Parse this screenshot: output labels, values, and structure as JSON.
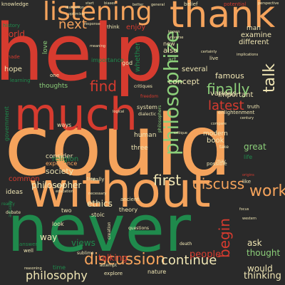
{
  "palette": {
    "background": "#2a2a2a",
    "red": "#d63b2f",
    "orange": "#f5a35c",
    "green": "#1f8a4c",
    "light_green": "#8ccf7a",
    "cream": "#f0e6b4"
  },
  "words": [
    {
      "text": "help",
      "color": "#d63b2f"
    },
    {
      "text": "could",
      "color": "#f5a35c"
    },
    {
      "text": "never",
      "color": "#1f8a4c"
    },
    {
      "text": "without",
      "color": "#f5a35c"
    },
    {
      "text": "thank",
      "color": "#f5a35c"
    },
    {
      "text": "much",
      "color": "#d63b2f"
    },
    {
      "text": "listening",
      "color": "#f5a35c"
    },
    {
      "text": "philosophize",
      "color": "#8ccf7a"
    },
    {
      "text": "discussion",
      "color": "#f5a35c"
    },
    {
      "text": "first",
      "color": "#f0e6b4"
    },
    {
      "text": "discuss",
      "color": "#f5a35c"
    },
    {
      "text": "work",
      "color": "#f5a35c"
    },
    {
      "text": "talk",
      "color": "#f0e6b4"
    },
    {
      "text": "finally",
      "color": "#8ccf7a"
    },
    {
      "text": "next",
      "color": "#f5a35c"
    },
    {
      "text": "find",
      "color": "#d63b2f"
    },
    {
      "text": "latest",
      "color": "#d63b2f"
    },
    {
      "text": "begin",
      "color": "#d63b2f"
    },
    {
      "text": "continue",
      "color": "#f0e6b4"
    },
    {
      "text": "philosophy",
      "color": "#f0e6b4"
    },
    {
      "text": "philosopher",
      "color": "#f0e6b4"
    },
    {
      "text": "thought",
      "color": "#8ccf7a"
    },
    {
      "text": "people",
      "color": "#d63b2f"
    },
    {
      "text": "thinking",
      "color": "#f0e6b4"
    },
    {
      "text": "world",
      "color": "#d63b2f"
    },
    {
      "text": "concept",
      "color": "#f0e6b4"
    },
    {
      "text": "talking",
      "color": "#d63b2f"
    },
    {
      "text": "views",
      "color": "#1f8a4c"
    },
    {
      "text": "ethics",
      "color": "#f0e6b4"
    },
    {
      "text": "ask",
      "color": "#f0e6b4"
    },
    {
      "text": "would",
      "color": "#f0e6b4"
    },
    {
      "text": "way",
      "color": "#f0e6b4"
    },
    {
      "text": "society",
      "color": "#f0e6b4"
    },
    {
      "text": "human",
      "color": "#f0e6b4"
    },
    {
      "text": "modern",
      "color": "#f0e6b4"
    },
    {
      "text": "great",
      "color": "#8ccf7a"
    },
    {
      "text": "book",
      "color": "#f0e6b4"
    },
    {
      "text": "famous",
      "color": "#f0e6b4"
    },
    {
      "text": "important",
      "color": "#f0e6b4"
    },
    {
      "text": "various",
      "color": "#f0e6b4"
    },
    {
      "text": "hope",
      "color": "#f0e6b4"
    },
    {
      "text": "ideas",
      "color": "#f0e6b4"
    },
    {
      "text": "thoughts",
      "color": "#8ccf7a"
    },
    {
      "text": "consider",
      "color": "#f0e6b4"
    },
    {
      "text": "experience",
      "color": "#f5a35c"
    },
    {
      "text": "religion",
      "color": "#1f8a4c"
    },
    {
      "text": "common",
      "color": "#d63b2f"
    },
    {
      "text": "several",
      "color": "#f0e6b4"
    },
    {
      "text": "also",
      "color": "#f0e6b4"
    },
    {
      "text": "examine",
      "color": "#f0e6b4"
    },
    {
      "text": "different",
      "color": "#f0e6b4"
    },
    {
      "text": "love",
      "color": "#8ccf7a"
    },
    {
      "text": "importance",
      "color": "#1f8a4c"
    },
    {
      "text": "god",
      "color": "#f0e6b4"
    },
    {
      "text": "enjoy",
      "color": "#d63b2f"
    },
    {
      "text": "think",
      "color": "#f0e6b4"
    },
    {
      "text": "man",
      "color": "#f0e6b4"
    },
    {
      "text": "art",
      "color": "#8ccf7a"
    },
    {
      "text": "whether",
      "color": "#1f8a4c"
    },
    {
      "text": "system",
      "color": "#f0e6b4"
    },
    {
      "text": "three",
      "color": "#f0e6b4"
    },
    {
      "text": "ways",
      "color": "#f0e6b4"
    },
    {
      "text": "learning",
      "color": "#1f8a4c"
    },
    {
      "text": "government",
      "color": "#1f8a4c"
    },
    {
      "text": "stoic",
      "color": "#f0e6b4"
    },
    {
      "text": "theory",
      "color": "#f0e6b4"
    },
    {
      "text": "two",
      "color": "#f0e6b4"
    },
    {
      "text": "look",
      "color": "#f0e6b4"
    },
    {
      "text": "ancient",
      "color": "#f0e6b4"
    },
    {
      "text": "really",
      "color": "#f0e6b4"
    },
    {
      "text": "nature",
      "color": "#f0e6b4"
    },
    {
      "text": "explore",
      "color": "#f0e6b4"
    },
    {
      "text": "time",
      "color": "#1f8a4c"
    },
    {
      "text": "answer",
      "color": "#1f8a4c"
    },
    {
      "text": "well",
      "color": "#f0e6b4"
    },
    {
      "text": "life",
      "color": "#1f8a4c"
    },
    {
      "text": "possible",
      "color": "#f0e6b4"
    },
    {
      "text": "like",
      "color": "#f0e6b4"
    },
    {
      "text": "truth",
      "color": "#f0e6b4"
    },
    {
      "text": "enlightenment",
      "color": "#f0e6b4"
    },
    {
      "text": "knowledge",
      "color": "#f0e6b4"
    },
    {
      "text": "belief",
      "color": "#f0e6b4"
    },
    {
      "text": "potential",
      "color": "#d63b2f"
    },
    {
      "text": "made",
      "color": "#d63b2f"
    },
    {
      "text": "history",
      "color": "#1f8a4c"
    },
    {
      "text": "critiques",
      "color": "#f0e6b4"
    },
    {
      "text": "freedom",
      "color": "#d63b2f"
    },
    {
      "text": "dialectic",
      "color": "#f0e6b4"
    },
    {
      "text": "reality",
      "color": "#1f8a4c"
    },
    {
      "text": "debate",
      "color": "#f0e6b4"
    },
    {
      "text": "questions",
      "color": "#f0e6b4"
    },
    {
      "text": "sublime",
      "color": "#f0e6b4"
    },
    {
      "text": "attempt",
      "color": "#f0e6b4"
    },
    {
      "text": "creation",
      "color": "#f0e6b4"
    },
    {
      "text": "death",
      "color": "#f0e6b4"
    },
    {
      "text": "necessary",
      "color": "#f0e6b4"
    },
    {
      "text": "focus",
      "color": "#f0e6b4"
    },
    {
      "text": "western",
      "color": "#f0e6b4"
    },
    {
      "text": "origins",
      "color": "#d63b2f"
    },
    {
      "text": "century",
      "color": "#f0e6b4"
    },
    {
      "text": "compare",
      "color": "#f0e6b4"
    },
    {
      "text": "known",
      "color": "#f0e6b4"
    },
    {
      "text": "universe",
      "color": "#f0e6b4"
    },
    {
      "text": "certainty",
      "color": "#f0e6b4"
    },
    {
      "text": "implications",
      "color": "#f0e6b4"
    },
    {
      "text": "critique",
      "color": "#f0e6b4"
    },
    {
      "text": "logical",
      "color": "#f0e6b4"
    },
    {
      "text": "distinction",
      "color": "#f0e6b4"
    },
    {
      "text": "optimism",
      "color": "#f0e6b4"
    },
    {
      "text": "response",
      "color": "#f0e6b4"
    },
    {
      "text": "perspective",
      "color": "#f0e6b4"
    },
    {
      "text": "better",
      "color": "#f0e6b4"
    },
    {
      "text": "general",
      "color": "#f0e6b4"
    },
    {
      "text": "philosophers",
      "color": "#8ccf7a"
    },
    {
      "text": "take",
      "color": "#f0e6b4"
    },
    {
      "text": "may",
      "color": "#f0e6b4"
    },
    {
      "text": "good",
      "color": "#f0e6b4"
    },
    {
      "text": "education",
      "color": "#f0e6b4"
    },
    {
      "text": "reasoning",
      "color": "#f0e6b4"
    },
    {
      "text": "actually",
      "color": "#1f8a4c"
    },
    {
      "text": "one",
      "color": "#f0e6b4"
    },
    {
      "text": "live",
      "color": "#f0e6b4"
    },
    {
      "text": "new",
      "color": "#f0e6b4"
    },
    {
      "text": "start",
      "color": "#f0e6b4"
    },
    {
      "text": "biases",
      "color": "#f0e6b4"
    },
    {
      "text": "meaning",
      "color": "#f0e6b4"
    },
    {
      "text": "tree",
      "color": "#f0e6b4"
    }
  ]
}
